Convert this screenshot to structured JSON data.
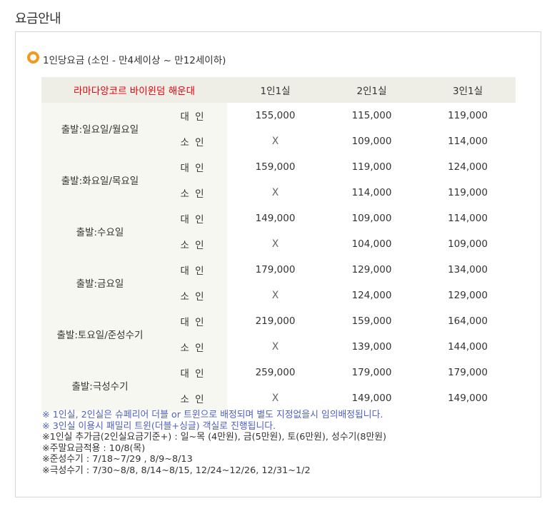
{
  "page_title": "요금안내",
  "section_title": "1인당요금 (소인 - 만4세이상 ~ 만12세이하)",
  "table": {
    "hotel": "라마다앙코르 바이윈덤 해운대",
    "room_types": [
      "1인1실",
      "2인1실",
      "3인1실"
    ],
    "adult_label": "대 인",
    "child_label": "소 인",
    "groups": [
      {
        "day": "출발:일요일/월요일",
        "adult": [
          "155,000",
          "115,000",
          "119,000"
        ],
        "child": [
          "X",
          "109,000",
          "114,000"
        ]
      },
      {
        "day": "출발:화요일/목요일",
        "adult": [
          "159,000",
          "119,000",
          "124,000"
        ],
        "child": [
          "X",
          "114,000",
          "119,000"
        ]
      },
      {
        "day": "출발:수요일",
        "adult": [
          "149,000",
          "109,000",
          "114,000"
        ],
        "child": [
          "X",
          "104,000",
          "109,000"
        ]
      },
      {
        "day": "출발:금요일",
        "adult": [
          "179,000",
          "129,000",
          "134,000"
        ],
        "child": [
          "X",
          "124,000",
          "129,000"
        ]
      },
      {
        "day": "출발:토요일/준성수기",
        "adult": [
          "219,000",
          "159,000",
          "164,000"
        ],
        "child": [
          "X",
          "139,000",
          "144,000"
        ]
      },
      {
        "day": "출발:극성수기",
        "adult": [
          "259,000",
          "179,000",
          "179,000"
        ],
        "child": [
          "X",
          "149,000",
          "149,000"
        ]
      }
    ]
  },
  "notes": [
    {
      "text": "※ 1인실, 2인실은 슈페리어 더블 or 트윈으로 배정되며 별도 지정없을시 임의배정됩니다.",
      "style": "blue"
    },
    {
      "text": "※ 3인실 이용시 패밀리 트윈(더블+싱글) 객실로 진행됩니다.",
      "style": "blue"
    },
    {
      "text": "※1인실 추가금(2인실요금기준+) : 일~목 (4만원), 금(5만원), 토(6만원), 성수기(8만원)",
      "style": "dark"
    },
    {
      "text": "※주말요금적용 : 10/8(목)",
      "style": "dark"
    },
    {
      "text": "※준성수기 : 7/18~7/29 , 8/9~8/13",
      "style": "dark"
    },
    {
      "text": "※극성수기 : 7/30~8/8, 8/14~8/15, 12/24~12/26, 12/31~1/2",
      "style": "dark"
    }
  ],
  "colors": {
    "accent": "#f29a1d",
    "hotel_label": "#e8000b",
    "note_blue": "#4d5fc8",
    "header_bg": "#eeede6"
  }
}
